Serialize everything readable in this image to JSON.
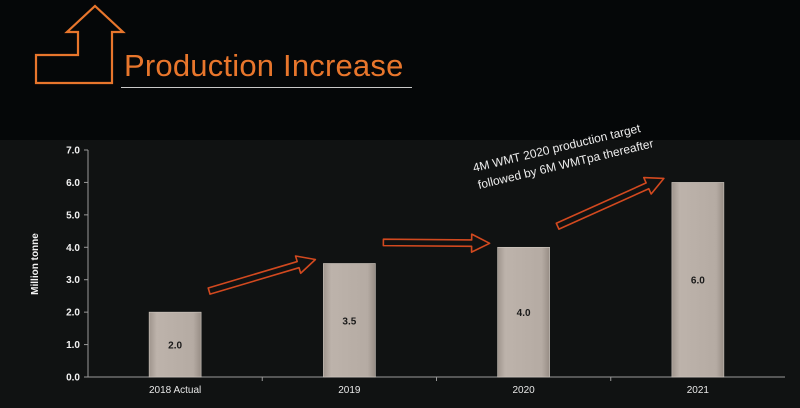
{
  "slide": {
    "title": "Production Increase",
    "colors": {
      "accent": "#E8762C",
      "background": "#050708",
      "panel": "#101212",
      "bar": "#B7ADA5",
      "arrow": "#D2491F"
    },
    "icons": [
      "up-turn-arrow-icon"
    ]
  },
  "chart_data": {
    "type": "bar",
    "title": "",
    "xlabel": "",
    "ylabel": "Million tonne",
    "ylim": [
      0,
      7
    ],
    "yticks": [
      "0.0",
      "1.0",
      "2.0",
      "3.0",
      "4.0",
      "5.0",
      "6.0",
      "7.0"
    ],
    "grid": false,
    "legend": "none",
    "categories": [
      "2018 Actual",
      "2019",
      "2020",
      "2021"
    ],
    "values": [
      2.0,
      3.5,
      4.0,
      6.0
    ],
    "data_labels": [
      "2.0",
      "3.5",
      "4.0",
      "6.0"
    ],
    "annotation": {
      "lines": [
        "4M WMT 2020 production target",
        "followed by 6M WMTpa thereafter"
      ]
    }
  }
}
